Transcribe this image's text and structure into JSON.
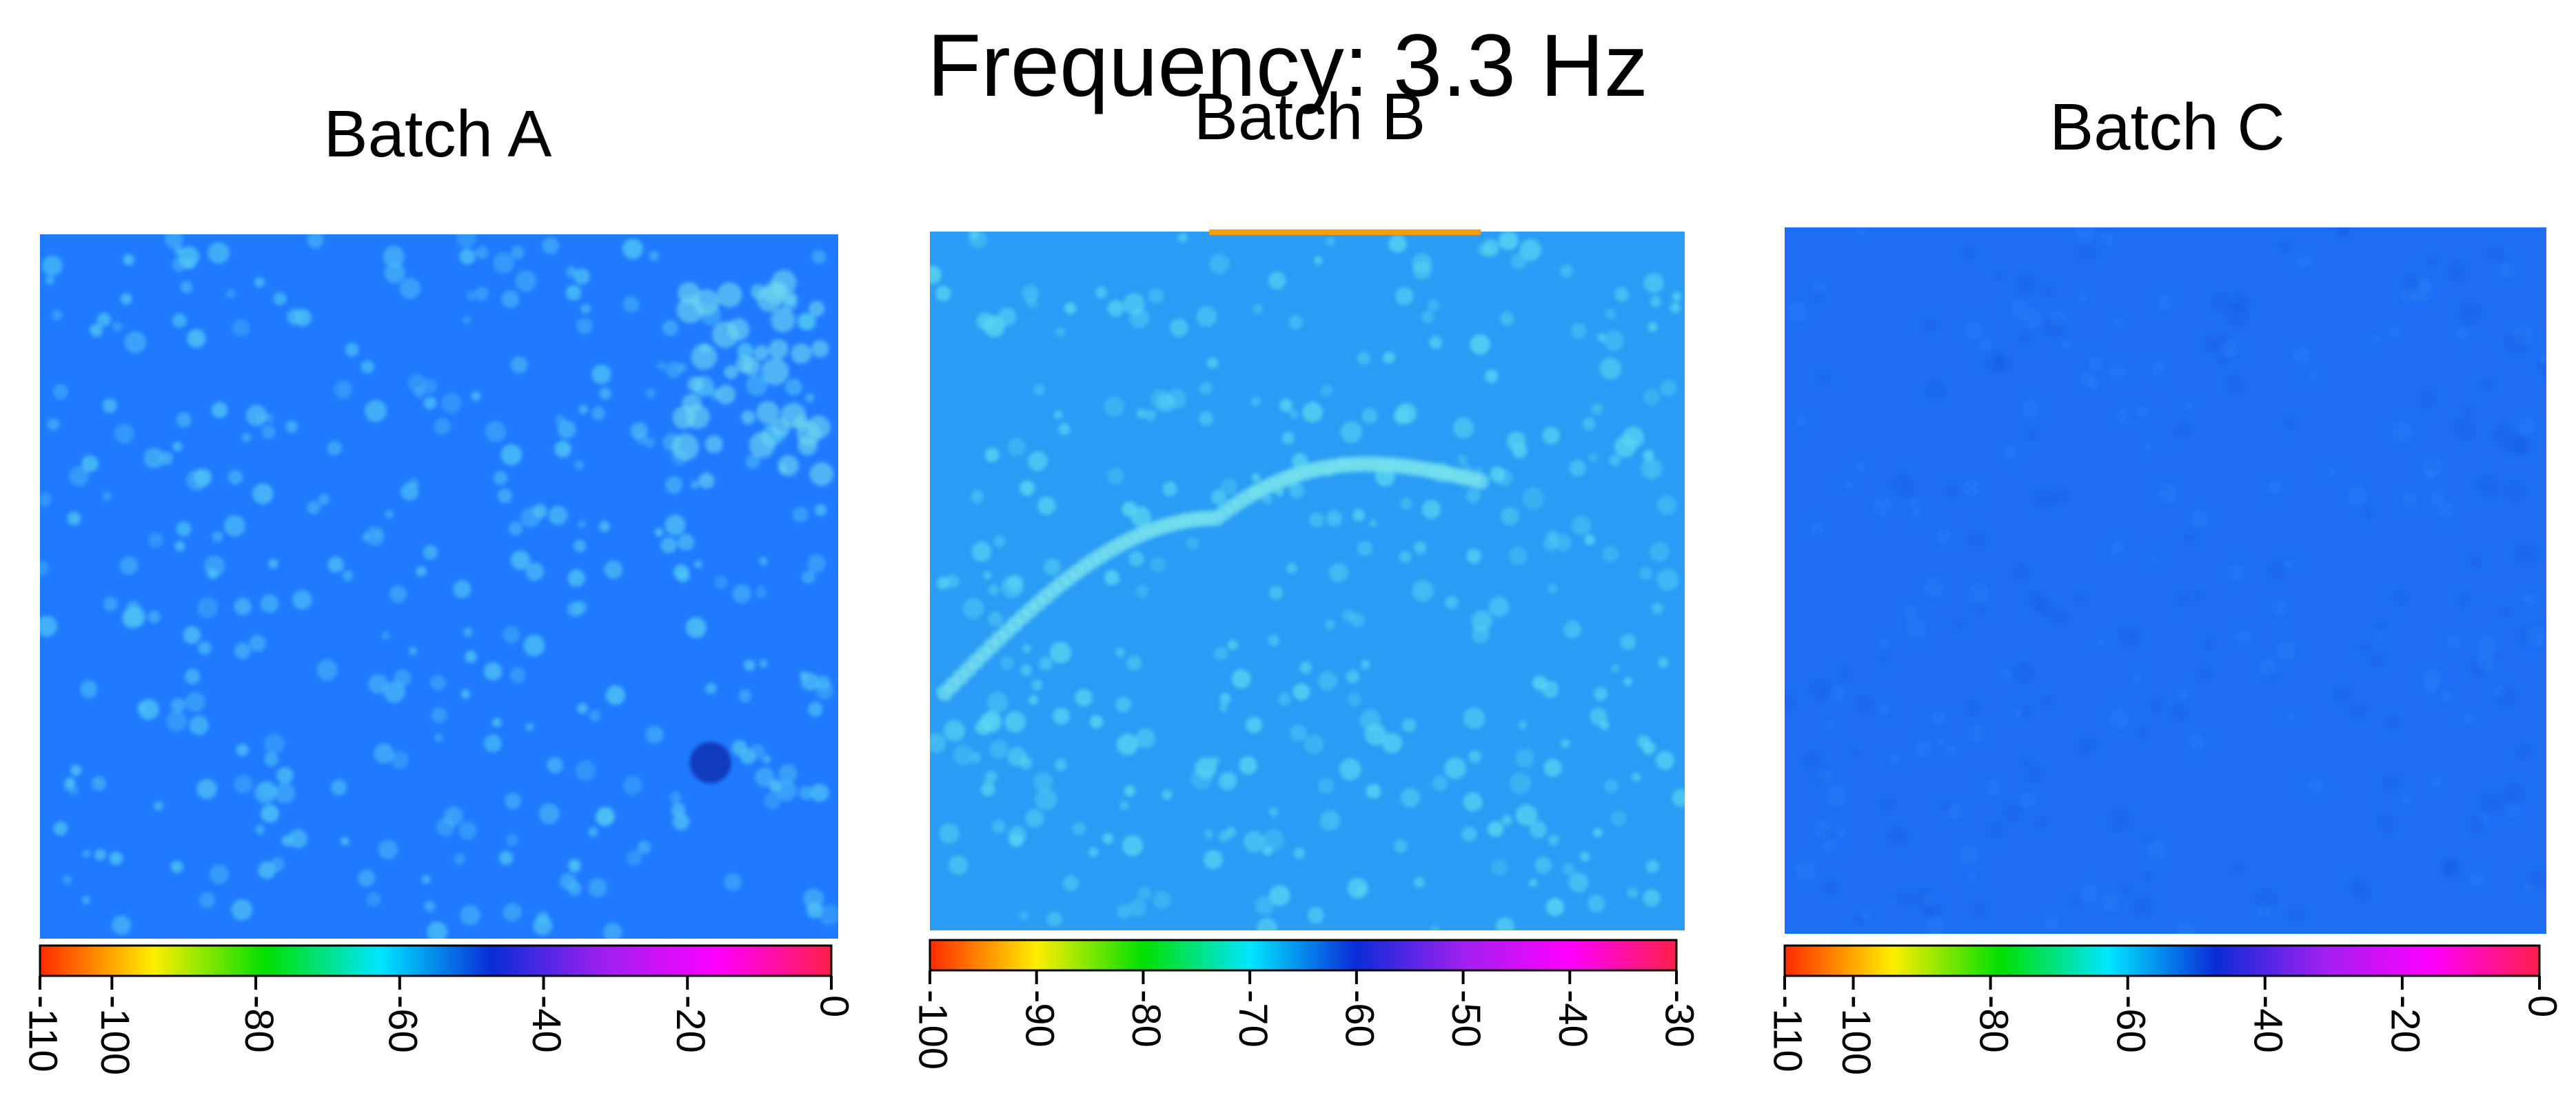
{
  "figure": {
    "title": "Frequency: 3.3 Hz"
  },
  "chart_data": [
    {
      "type": "heatmap",
      "title": "Batch A",
      "colorbar": {
        "min": -110,
        "max": 0,
        "ticks": [
          -110,
          -100,
          -80,
          -60,
          -40,
          -20,
          0
        ],
        "tick_labels": [
          "-110",
          "-100",
          "-80",
          "-60",
          "-40",
          "-20",
          "0"
        ],
        "colormap": [
          "#ff2a00",
          "#ffee00",
          "#00e000",
          "#00e6ff",
          "#0a2cd8",
          "#a020f0",
          "#ff00ff",
          "#ff1f4a"
        ]
      },
      "field": {
        "base_value": -61,
        "base_color": "#1f7aff",
        "spot_color": "#4fc6f5",
        "dark_spot_color": "#1235b5"
      }
    },
    {
      "type": "heatmap",
      "title": "Batch B",
      "colorbar": {
        "min": -100,
        "max": -30,
        "ticks": [
          -100,
          -90,
          -80,
          -70,
          -60,
          -50,
          -40,
          -30
        ],
        "tick_labels": [
          "-100",
          "-90",
          "-80",
          "-70",
          "-60",
          "-50",
          "-40",
          "-30"
        ],
        "colormap": [
          "#ff2a00",
          "#ffee00",
          "#00e000",
          "#00e6ff",
          "#0a2cd8",
          "#a020f0",
          "#ff00ff",
          "#ff1f4a"
        ]
      },
      "field": {
        "base_value": -67,
        "base_color": "#2a9cf5",
        "spot_color": "#5ad6f2",
        "edge_color": "#ff9a00"
      }
    },
    {
      "type": "heatmap",
      "title": "Batch C",
      "colorbar": {
        "min": -110,
        "max": 0,
        "ticks": [
          -110,
          -100,
          -80,
          -60,
          -40,
          -20,
          0
        ],
        "tick_labels": [
          "-110",
          "-100",
          "-80",
          "-60",
          "-40",
          "-20",
          "0"
        ],
        "colormap": [
          "#ff2a00",
          "#ffee00",
          "#00e000",
          "#00e6ff",
          "#0a2cd8",
          "#a020f0",
          "#ff00ff",
          "#ff1f4a"
        ]
      },
      "field": {
        "base_value": -59,
        "base_color": "#1d6ef5",
        "spot_color": "#2d8cf7"
      }
    }
  ]
}
